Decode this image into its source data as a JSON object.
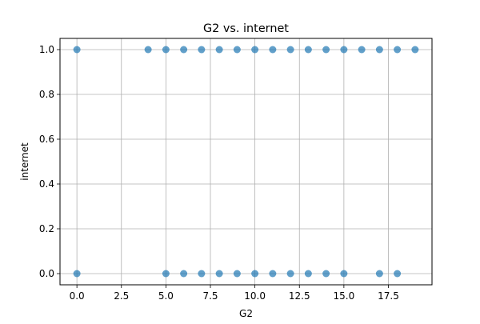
{
  "chart_data": {
    "type": "scatter",
    "title": "G2 vs. internet",
    "xlabel": "G2",
    "ylabel": "internet",
    "xlim": [
      -0.95,
      19.95
    ],
    "ylim": [
      -0.05,
      1.05
    ],
    "xticks": [
      0.0,
      2.5,
      5.0,
      7.5,
      10.0,
      12.5,
      15.0,
      17.5
    ],
    "xtick_labels": [
      "0.0",
      "2.5",
      "5.0",
      "7.5",
      "10.0",
      "12.5",
      "15.0",
      "17.5"
    ],
    "yticks": [
      0.0,
      0.2,
      0.4,
      0.6,
      0.8,
      1.0
    ],
    "ytick_labels": [
      "0.0",
      "0.2",
      "0.4",
      "0.6",
      "0.8",
      "1.0"
    ],
    "grid": true,
    "marker_color": "#1f77b4",
    "marker_alpha": 0.7,
    "points": [
      {
        "x": 0,
        "y": 1
      },
      {
        "x": 4,
        "y": 1
      },
      {
        "x": 5,
        "y": 1
      },
      {
        "x": 6,
        "y": 1
      },
      {
        "x": 7,
        "y": 1
      },
      {
        "x": 8,
        "y": 1
      },
      {
        "x": 9,
        "y": 1
      },
      {
        "x": 10,
        "y": 1
      },
      {
        "x": 11,
        "y": 1
      },
      {
        "x": 12,
        "y": 1
      },
      {
        "x": 13,
        "y": 1
      },
      {
        "x": 14,
        "y": 1
      },
      {
        "x": 15,
        "y": 1
      },
      {
        "x": 16,
        "y": 1
      },
      {
        "x": 17,
        "y": 1
      },
      {
        "x": 18,
        "y": 1
      },
      {
        "x": 19,
        "y": 1
      },
      {
        "x": 0,
        "y": 0
      },
      {
        "x": 5,
        "y": 0
      },
      {
        "x": 6,
        "y": 0
      },
      {
        "x": 7,
        "y": 0
      },
      {
        "x": 8,
        "y": 0
      },
      {
        "x": 9,
        "y": 0
      },
      {
        "x": 10,
        "y": 0
      },
      {
        "x": 11,
        "y": 0
      },
      {
        "x": 12,
        "y": 0
      },
      {
        "x": 13,
        "y": 0
      },
      {
        "x": 14,
        "y": 0
      },
      {
        "x": 15,
        "y": 0
      },
      {
        "x": 17,
        "y": 0
      },
      {
        "x": 18,
        "y": 0
      }
    ]
  }
}
